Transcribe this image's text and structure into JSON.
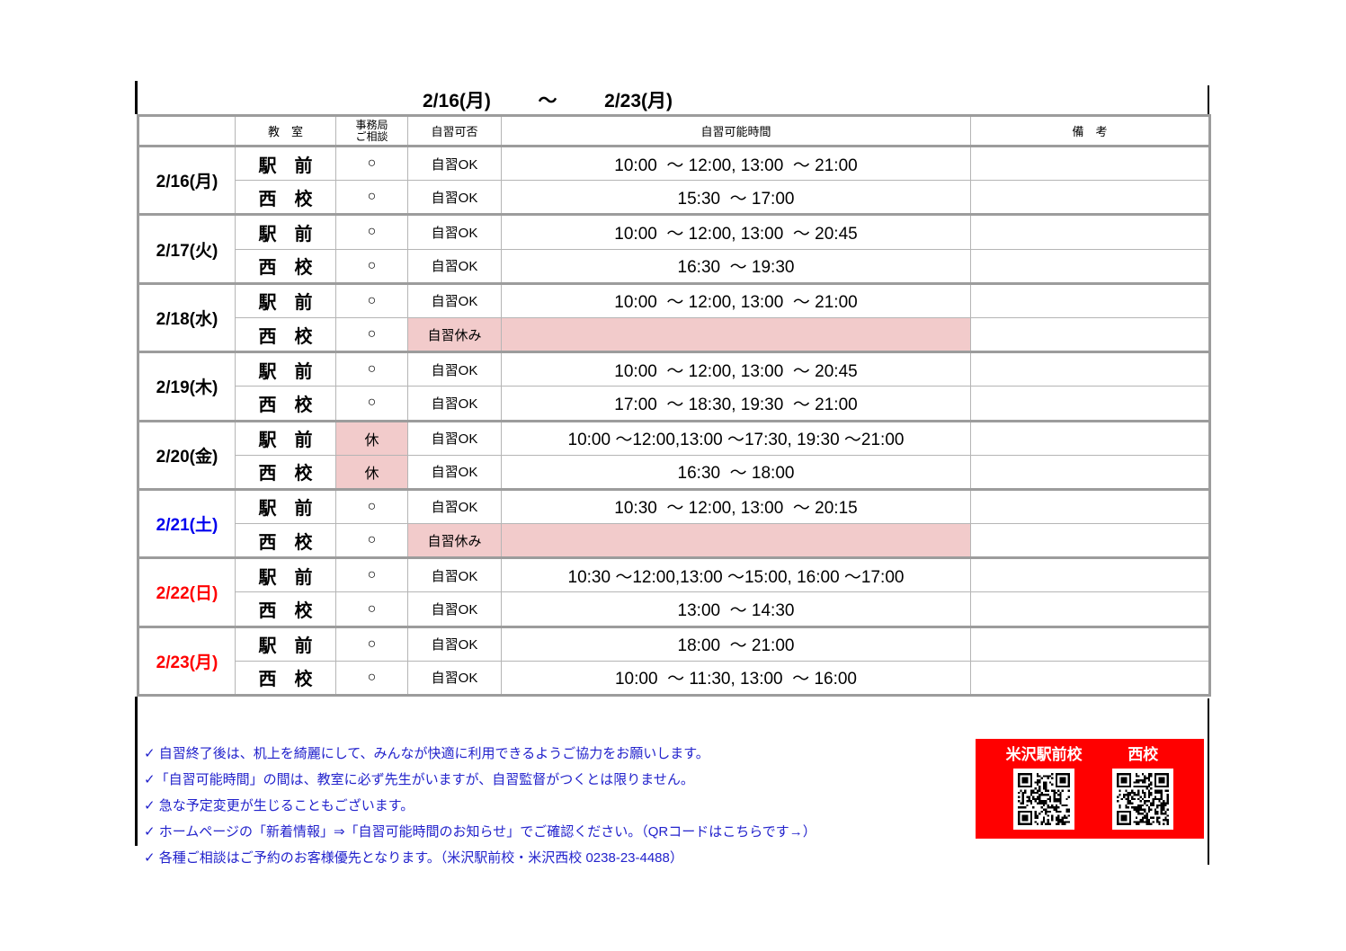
{
  "colors": {
    "pink": "#f2cbcb",
    "border-strong": "#9c9c9c",
    "border-light": "#b5b5b5",
    "note-blue": "#2222cc",
    "panel-red": "#ff0000"
  },
  "title": {
    "from": "2/16(月)",
    "tilde": "～",
    "to": "2/23(月)"
  },
  "table": {
    "headers": {
      "classroom": "教　室",
      "office_line1": "事務局",
      "office_line2": "ご相談",
      "availability": "自習可否",
      "hours": "自習可能時間",
      "remarks": "備　考"
    },
    "days": [
      {
        "date": "2/16(月)",
        "date_color": "#000000",
        "rows": [
          {
            "classroom": "駅　前",
            "office": "○",
            "availability": "自習OK",
            "hours": "10:00  ～ 12:00, 13:00  ～ 21:00",
            "remarks": ""
          },
          {
            "classroom": "西　校",
            "office": "○",
            "availability": "自習OK",
            "hours": "15:30  ～ 17:00",
            "remarks": ""
          }
        ]
      },
      {
        "date": "2/17(火)",
        "date_color": "#000000",
        "rows": [
          {
            "classroom": "駅　前",
            "office": "○",
            "availability": "自習OK",
            "hours": "10:00  ～ 12:00, 13:00  ～ 20:45",
            "remarks": ""
          },
          {
            "classroom": "西　校",
            "office": "○",
            "availability": "自習OK",
            "hours": "16:30  ～ 19:30",
            "remarks": ""
          }
        ]
      },
      {
        "date": "2/18(水)",
        "date_color": "#000000",
        "rows": [
          {
            "classroom": "駅　前",
            "office": "○",
            "availability": "自習OK",
            "hours": "10:00  ～ 12:00, 13:00  ～ 21:00",
            "remarks": ""
          },
          {
            "classroom": "西　校",
            "office": "○",
            "availability": "自習休み",
            "hours": "",
            "remarks": ""
          }
        ]
      },
      {
        "date": "2/19(木)",
        "date_color": "#000000",
        "rows": [
          {
            "classroom": "駅　前",
            "office": "○",
            "availability": "自習OK",
            "hours": "10:00  ～ 12:00, 13:00  ～ 20:45",
            "remarks": ""
          },
          {
            "classroom": "西　校",
            "office": "○",
            "availability": "自習OK",
            "hours": "17:00  ～ 18:30, 19:30  ～ 21:00",
            "remarks": ""
          }
        ]
      },
      {
        "date": "2/20(金)",
        "date_color": "#000000",
        "rows": [
          {
            "classroom": "駅　前",
            "office": "休",
            "availability": "自習OK",
            "hours": "10:00 ～12:00,13:00 ～17:30, 19:30 ～21:00",
            "remarks": ""
          },
          {
            "classroom": "西　校",
            "office": "休",
            "availability": "自習OK",
            "hours": "16:30  ～ 18:00",
            "remarks": ""
          }
        ]
      },
      {
        "date": "2/21(土)",
        "date_color": "#0000ee",
        "rows": [
          {
            "classroom": "駅　前",
            "office": "○",
            "availability": "自習OK",
            "hours": "10:30  ～ 12:00, 13:00  ～ 20:15",
            "remarks": ""
          },
          {
            "classroom": "西　校",
            "office": "○",
            "availability": "自習休み",
            "hours": "",
            "remarks": ""
          }
        ]
      },
      {
        "date": "2/22(日)",
        "date_color": "#ff0000",
        "rows": [
          {
            "classroom": "駅　前",
            "office": "○",
            "availability": "自習OK",
            "hours": "10:30 ～12:00,13:00 ～15:00, 16:00 ～17:00",
            "remarks": ""
          },
          {
            "classroom": "西　校",
            "office": "○",
            "availability": "自習OK",
            "hours": "13:00  ～ 14:30",
            "remarks": ""
          }
        ]
      },
      {
        "date": "2/23(月)",
        "date_color": "#ff0000",
        "rows": [
          {
            "classroom": "駅　前",
            "office": "○",
            "availability": "自習OK",
            "hours": "18:00  ～ 21:00",
            "remarks": ""
          },
          {
            "classroom": "西　校",
            "office": "○",
            "availability": "自習OK",
            "hours": "10:00  ～ 11:30, 13:00  ～ 16:00",
            "remarks": ""
          }
        ]
      }
    ]
  },
  "notes": [
    "✓ 自習終了後は、机上を綺麗にして、みんなが快適に利用できるようご協力をお願いします。",
    "✓「自習可能時間」の間は、教室に必ず先生がいますが、自習監督がつくとは限りません。",
    "✓ 急な予定変更が生じることもございます。",
    "✓ ホームページの「新着情報」⇒「自習可能時間のお知らせ」でご確認ください。（QRコードはこちらです→）",
    "✓ 各種ご相談はご予約のお客様優先となります。（米沢駅前校・米沢西校 0238-23-4488）"
  ],
  "qr_panel": {
    "left_label": "米沢駅前校",
    "right_label": "西校"
  }
}
